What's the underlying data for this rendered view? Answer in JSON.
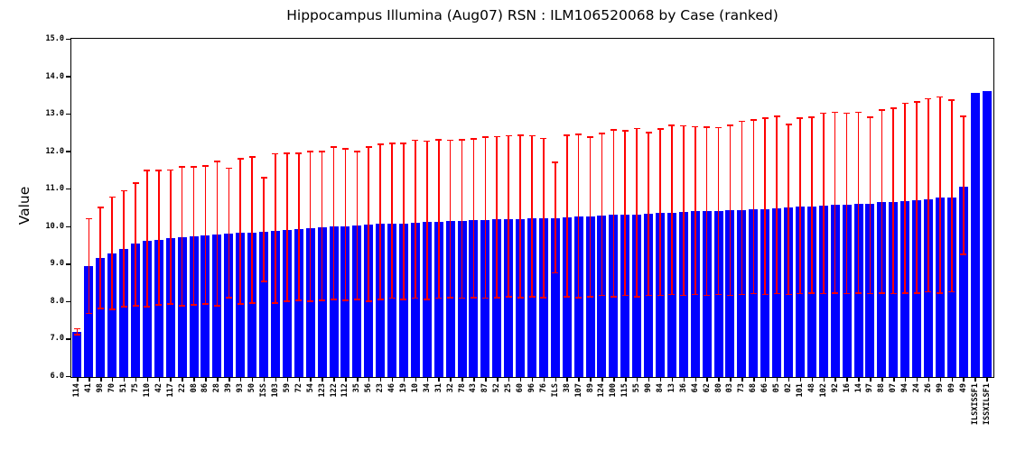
{
  "chart_data": {
    "type": "bar",
    "title": "Hippocampus Illumina (Aug07) RSN : ILM106520068 by Case (ranked)",
    "ylabel": "Value",
    "ylim": [
      6.0,
      15.0
    ],
    "ytick_labels": [
      "6.0",
      "7.0",
      "8.0",
      "9.0",
      "10.0",
      "11.0",
      "12.0",
      "13.0",
      "14.0",
      "15.0"
    ],
    "grid": false,
    "bar_color": "#0000ff",
    "error_bar_color": "#ff0000",
    "axis_color": "#000000",
    "categories": [
      "114",
      "41",
      "98",
      "70",
      "51",
      "75",
      "110",
      "42",
      "117",
      "22",
      "08",
      "86",
      "28",
      "39",
      "93",
      "50",
      "ISS",
      "103",
      "59",
      "72",
      "54",
      "123",
      "122",
      "112",
      "35",
      "56",
      "23",
      "46",
      "19",
      "10",
      "34",
      "31",
      "32",
      "78",
      "43",
      "87",
      "52",
      "25",
      "60",
      "96",
      "76",
      "ILS",
      "38",
      "107",
      "89",
      "124",
      "100",
      "115",
      "55",
      "90",
      "84",
      "13",
      "36",
      "64",
      "62",
      "80",
      "03",
      "73",
      "68",
      "66",
      "05",
      "02",
      "101",
      "48",
      "102",
      "92",
      "16",
      "14",
      "97",
      "88",
      "07",
      "94",
      "24",
      "26",
      "99",
      "09",
      "49",
      "ILSXISSF1",
      "ISSXILSF1"
    ],
    "values": [
      7.2,
      8.97,
      9.18,
      9.3,
      9.42,
      9.57,
      9.64,
      9.67,
      9.7,
      9.73,
      9.75,
      9.77,
      9.8,
      9.82,
      9.84,
      9.86,
      9.88,
      9.9,
      9.93,
      9.95,
      9.97,
      10.0,
      10.02,
      10.03,
      10.05,
      10.06,
      10.08,
      10.09,
      10.1,
      10.12,
      10.13,
      10.14,
      10.16,
      10.17,
      10.18,
      10.19,
      10.2,
      10.21,
      10.22,
      10.23,
      10.24,
      10.24,
      10.26,
      10.28,
      10.29,
      10.3,
      10.32,
      10.33,
      10.34,
      10.35,
      10.37,
      10.38,
      10.4,
      10.42,
      10.43,
      10.44,
      10.45,
      10.46,
      10.47,
      10.48,
      10.49,
      10.52,
      10.54,
      10.56,
      10.58,
      10.59,
      10.6,
      10.61,
      10.63,
      10.66,
      10.68,
      10.7,
      10.72,
      10.75,
      10.78,
      10.8,
      11.08,
      13.58,
      13.62
    ],
    "error_low": [
      7.1,
      7.67,
      7.8,
      7.78,
      7.85,
      7.88,
      7.85,
      7.9,
      7.92,
      7.88,
      7.9,
      7.92,
      7.88,
      8.1,
      7.92,
      7.95,
      8.52,
      7.95,
      8.0,
      8.02,
      8.0,
      8.02,
      8.05,
      8.02,
      8.05,
      8.0,
      8.05,
      8.08,
      8.05,
      8.08,
      8.05,
      8.08,
      8.1,
      8.08,
      8.1,
      8.08,
      8.1,
      8.12,
      8.1,
      8.12,
      8.1,
      8.76,
      8.12,
      8.1,
      8.12,
      8.15,
      8.12,
      8.15,
      8.12,
      8.15,
      8.15,
      8.18,
      8.15,
      8.18,
      8.15,
      8.18,
      8.15,
      8.18,
      8.2,
      8.18,
      8.2,
      8.18,
      8.2,
      8.22,
      8.2,
      8.22,
      8.2,
      8.22,
      8.2,
      8.22,
      8.2,
      8.22,
      8.22,
      8.25,
      8.22,
      8.25,
      9.25,
      null,
      null
    ],
    "error_high": [
      7.26,
      10.2,
      10.5,
      10.78,
      10.95,
      11.15,
      11.48,
      11.48,
      11.5,
      11.58,
      11.58,
      11.6,
      11.73,
      11.55,
      11.8,
      11.85,
      11.3,
      11.93,
      11.95,
      11.95,
      11.99,
      11.99,
      12.11,
      12.07,
      11.99,
      12.11,
      12.19,
      12.21,
      12.21,
      12.29,
      12.27,
      12.31,
      12.29,
      12.31,
      12.33,
      12.37,
      12.39,
      12.41,
      12.43,
      12.41,
      12.34,
      11.71,
      12.43,
      12.45,
      12.37,
      12.47,
      12.57,
      12.54,
      12.61,
      12.5,
      12.59,
      12.69,
      12.68,
      12.65,
      12.64,
      12.63,
      12.69,
      12.8,
      12.84,
      12.88,
      12.93,
      12.71,
      12.88,
      12.9,
      13.01,
      13.04,
      13.01,
      13.04,
      12.9,
      13.1,
      13.15,
      13.28,
      13.31,
      13.4,
      13.45,
      13.37,
      12.93,
      null,
      null
    ]
  }
}
